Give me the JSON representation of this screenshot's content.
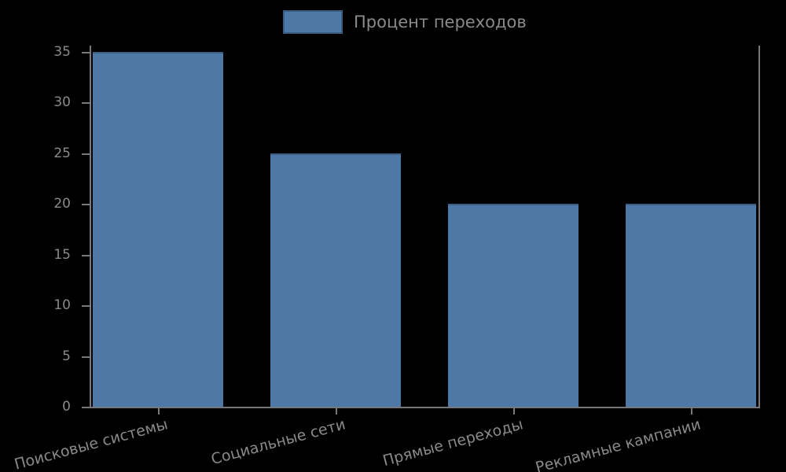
{
  "chart_data": {
    "type": "bar",
    "title": "",
    "xlabel": "",
    "ylabel": "",
    "legend": {
      "label": "Процент переходов",
      "position": "upper center"
    },
    "categories": [
      "Поисковые системы",
      "Социальные сети",
      "Прямые переходы",
      "Рекламные кампании"
    ],
    "values": [
      35,
      25,
      20,
      20
    ],
    "yticks": [
      0,
      5,
      10,
      15,
      20,
      25,
      30,
      35
    ],
    "ylim": [
      0,
      35
    ],
    "grid": false,
    "xlabel_rotation_deg": -15,
    "colors": {
      "background": "#000000",
      "bar_fill": "#4e79a7",
      "bar_edge": "#3c5d82",
      "text": "#8a8a8a",
      "spine": "#787878"
    }
  }
}
